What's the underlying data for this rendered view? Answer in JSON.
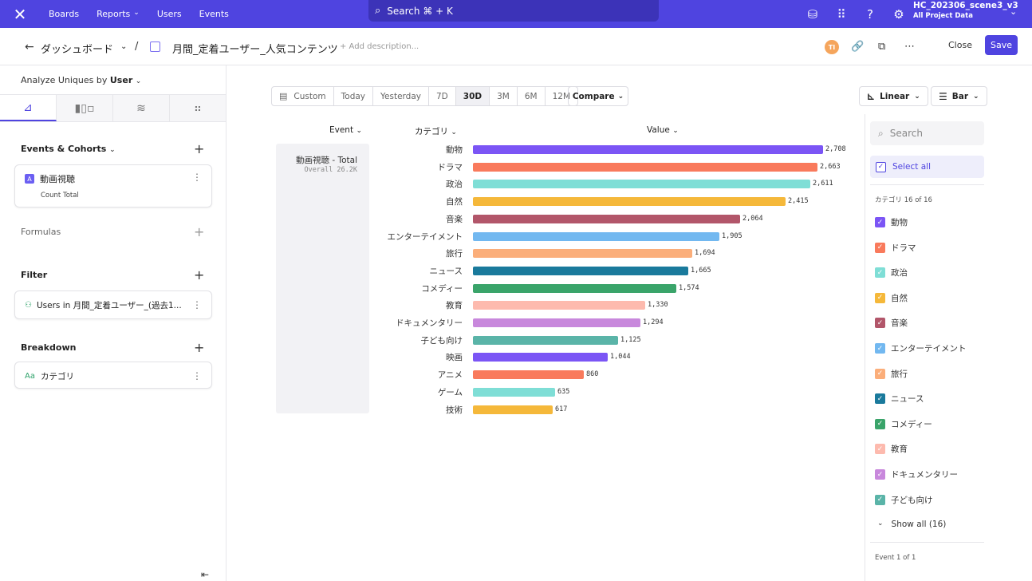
{
  "topbar": {
    "logo": "✕",
    "nav": [
      {
        "label": "Boards"
      },
      {
        "label": "Reports",
        "chevron": "⌄"
      },
      {
        "label": "Users"
      },
      {
        "label": "Events"
      }
    ],
    "search_label": "Search ⌘ + K",
    "project_name": "HC_202306_scene3_v3",
    "project_scope": "All Project Data"
  },
  "header": {
    "breadcrumb": "ダッシュボード",
    "separator": "/",
    "report_title": "月間_定着ユーザー_人気コンテンツ",
    "add_description": "+ Add description...",
    "avatar_initials": "TI",
    "close_label": "Close",
    "save_label": "Save"
  },
  "left_panel": {
    "analyze_prefix": "Analyze Uniques by",
    "analyze_value": "User",
    "events_title": "Events & Cohorts",
    "event_letter": "A",
    "event_name": "動画視聴",
    "event_measure": "Count Total",
    "formulas_title": "Formulas",
    "filter_title": "Filter",
    "filter_value": "Users in 月間_定着ユーザー_(過去1...",
    "breakdown_title": "Breakdown",
    "breakdown_prefix": "Aa",
    "breakdown_value": "カテゴリ"
  },
  "controls": {
    "date_ranges": [
      "Custom",
      "Today",
      "Yesterday",
      "7D",
      "30D",
      "3M",
      "6M",
      "12M"
    ],
    "active_range": "30D",
    "compare_label": "Compare",
    "scale_label": "Linear",
    "chart_type_label": "Bar"
  },
  "table_headers": {
    "event": "Event",
    "category": "カテゴリ",
    "value": "Value"
  },
  "event_cell": {
    "name": "動画視聴 - Total",
    "sub": "Overall  26.2K"
  },
  "chart_data": {
    "type": "bar",
    "orientation": "horizontal",
    "categories": [
      "動物",
      "ドラマ",
      "政治",
      "自然",
      "音楽",
      "エンターテイメント",
      "旅行",
      "ニュース",
      "コメディー",
      "教育",
      "ドキュメンタリー",
      "子ども向け",
      "映画",
      "アニメ",
      "ゲーム",
      "技術"
    ],
    "values": [
      2708,
      2663,
      2611,
      2415,
      2064,
      1905,
      1694,
      1665,
      1574,
      1330,
      1294,
      1125,
      1044,
      860,
      635,
      617
    ],
    "value_labels": [
      "2,708",
      "2,663",
      "2,611",
      "2,415",
      "2,064",
      "1,905",
      "1,694",
      "1,665",
      "1,574",
      "1,330",
      "1,294",
      "1,125",
      "1,044",
      "860",
      "635",
      "617"
    ],
    "colors": [
      "#7b55f5",
      "#f97a5c",
      "#7fded6",
      "#f5b83a",
      "#b2566a",
      "#72b8f0",
      "#fbae7a",
      "#1a7a9c",
      "#3aa46a",
      "#fdbaae",
      "#c888dc",
      "#5ab4a8",
      "#7b55f5",
      "#f97a5c",
      "#7fded6",
      "#f5b83a"
    ],
    "xlim": [
      0,
      2708
    ]
  },
  "filter_panel": {
    "search_placeholder": "Search",
    "select_all": "Select all",
    "category_header": "カテゴリ 16 of 16",
    "visible_items": 12,
    "show_all": "Show all (16)",
    "event_header": "Event 1 of 1"
  }
}
